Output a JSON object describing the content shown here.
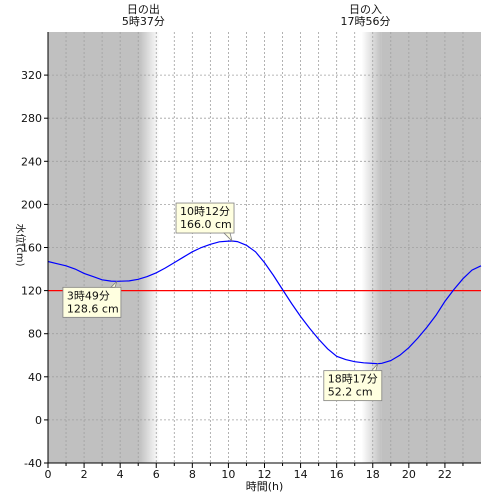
{
  "chart_data": {
    "type": "line",
    "xlabel": "時間(h)",
    "ylabel": "水位(cm)",
    "xlim": [
      0,
      24
    ],
    "ylim": [
      -40,
      360
    ],
    "x_ticks": [
      0,
      2,
      4,
      6,
      8,
      10,
      12,
      14,
      16,
      18,
      20,
      22
    ],
    "y_ticks": [
      -40,
      0,
      40,
      80,
      120,
      160,
      200,
      240,
      280,
      320
    ],
    "grid": true,
    "reference_line": {
      "value": 120,
      "color": "#ff0000"
    },
    "sunrise": {
      "label": "日の出",
      "time": "5時37分",
      "hour": 5.62
    },
    "sunset": {
      "label": "日の入",
      "time": "17時56分",
      "hour": 17.93
    },
    "series": [
      {
        "color": "#0000ff",
        "x": [
          0,
          0.5,
          1,
          1.5,
          2,
          2.5,
          3,
          3.5,
          3.82,
          4.5,
          5,
          5.5,
          6,
          6.5,
          7,
          7.5,
          8,
          8.5,
          9,
          9.5,
          10,
          10.2,
          10.5,
          11,
          11.5,
          12,
          12.5,
          13,
          13.5,
          14,
          14.5,
          15,
          15.5,
          16,
          16.5,
          17,
          17.5,
          18,
          18.28,
          18.5,
          19,
          19.5,
          20,
          20.5,
          21,
          21.5,
          22,
          22.5,
          23,
          23.5,
          24
        ],
        "y": [
          147,
          145,
          143,
          140,
          136,
          133,
          130,
          128.8,
          128.6,
          129,
          130.5,
          133,
          136.5,
          141,
          146,
          151,
          156,
          160,
          163,
          165.3,
          165.9,
          166.0,
          165.5,
          162,
          156,
          146,
          134,
          121,
          108,
          96,
          85,
          75,
          66,
          59,
          56,
          54,
          53,
          52.4,
          52.2,
          52.5,
          55,
          60,
          67,
          76,
          86,
          97,
          110,
          121,
          131,
          139,
          143
        ]
      }
    ],
    "annotations": [
      {
        "time": "10時12分",
        "value": "166.0 cm",
        "x": 10.2,
        "y": 166.0,
        "placement": "above"
      },
      {
        "time": "3時49分",
        "value": "128.6 cm",
        "x": 3.82,
        "y": 128.6,
        "placement": "below"
      },
      {
        "time": "18時17分",
        "value": "52.2 cm",
        "x": 18.28,
        "y": 52.2,
        "placement": "below"
      }
    ]
  },
  "colors": {
    "night": "#c0c0c0",
    "day": "#ffffff",
    "grid": "#a0a0a0",
    "callout_bg": "#ffffe0",
    "callout_border": "#808080"
  }
}
